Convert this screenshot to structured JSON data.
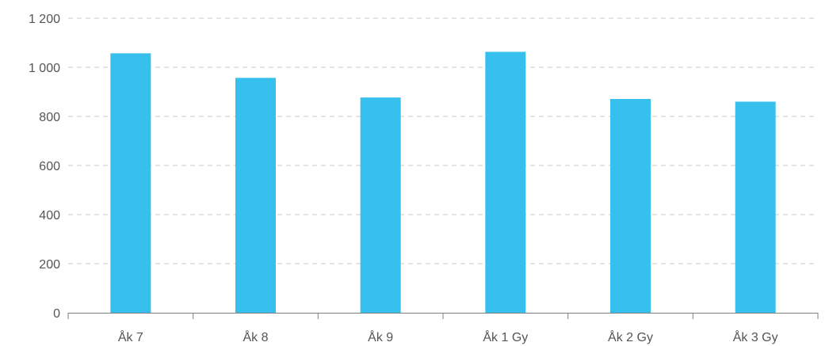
{
  "chart_data": {
    "type": "bar",
    "categories": [
      "Åk 7",
      "Åk 8",
      "Åk 9",
      "Åk 1 Gy",
      "Åk 2 Gy",
      "Åk 3 Gy"
    ],
    "values": [
      1057,
      957,
      877,
      1063,
      871,
      860
    ],
    "ylim": [
      0,
      1200
    ],
    "yticks": [
      0,
      200,
      400,
      600,
      800,
      1000,
      1200
    ],
    "ytick_labels": [
      "0",
      "200",
      "400",
      "600",
      "800",
      "1 000",
      "1 200"
    ],
    "grid": true,
    "legend": "none",
    "colors": {
      "bar": "#37C0EE"
    }
  }
}
